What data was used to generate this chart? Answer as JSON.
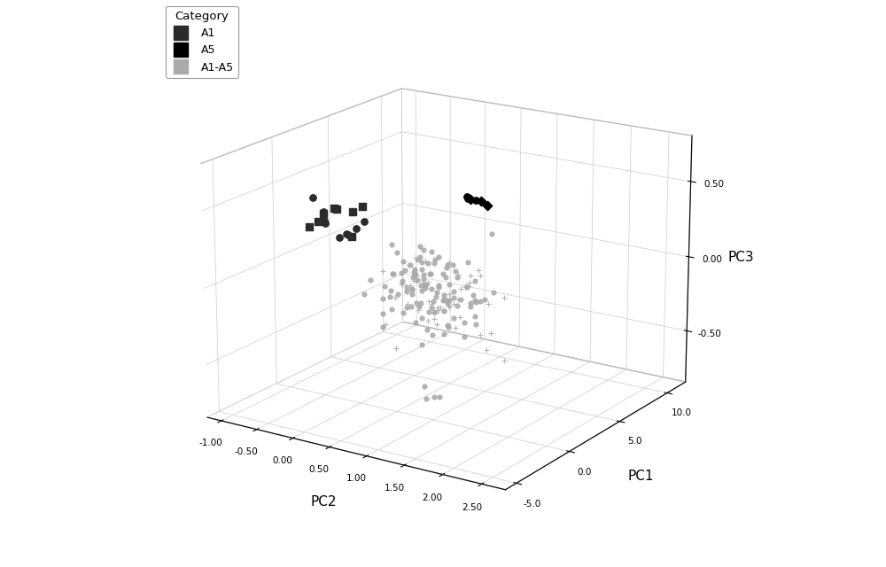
{
  "title": "",
  "xlabel": "PC2",
  "ylabel": "PC1",
  "zlabel": "PC3",
  "pc2_lim": [
    -1.2,
    2.8
  ],
  "pc1_lim": [
    -6,
    12
  ],
  "pc3_lim": [
    -0.85,
    0.8
  ],
  "pc2_ticks": [
    -1.0,
    -0.5,
    0.0,
    0.5,
    1.0,
    1.5,
    2.0,
    2.5
  ],
  "pc1_ticks": [
    -5.0,
    0.0,
    5.0,
    10.0
  ],
  "pc3_ticks": [
    -0.5,
    0.0,
    0.5
  ],
  "legend_title": "Category",
  "a1_color": "#2b2b2b",
  "a5_color": "#000000",
  "mix_color": "#aaaaaa",
  "bg_color": "#ffffff",
  "pane_color": "#ffffff",
  "elev": 18,
  "azim": -57
}
